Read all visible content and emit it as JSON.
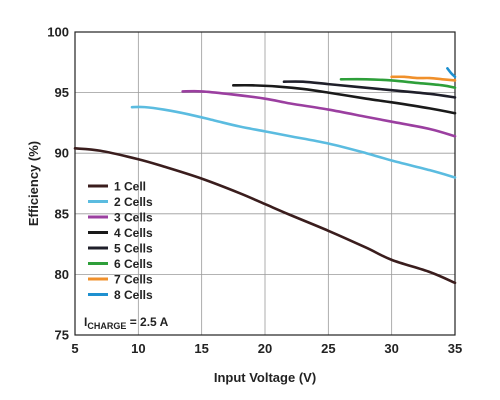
{
  "chart_data": {
    "type": "line",
    "title": "",
    "xlabel": "Input Voltage (V)",
    "ylabel": "Efficiency (%)",
    "xlim": [
      5,
      35
    ],
    "ylim": [
      75,
      100
    ],
    "xticks": [
      5,
      10,
      15,
      20,
      25,
      30,
      35
    ],
    "yticks": [
      75,
      80,
      85,
      90,
      95,
      100
    ],
    "grid": true,
    "legend_position": "left",
    "annotation": {
      "prefix": "I",
      "subscript": "CHARGE",
      "suffix": " = 2.5 A"
    },
    "series": [
      {
        "name": "1 Cell",
        "color": "#3a1d1d",
        "x": [
          5,
          7,
          10,
          12,
          15,
          18,
          20,
          22,
          25,
          28,
          30,
          33,
          35
        ],
        "y": [
          90.4,
          90.2,
          89.5,
          88.9,
          87.9,
          86.7,
          85.8,
          84.9,
          83.6,
          82.2,
          81.2,
          80.2,
          79.3
        ]
      },
      {
        "name": "2 Cells",
        "color": "#5bbce0",
        "x": [
          9.5,
          10.5,
          12,
          14,
          16,
          18,
          20,
          22,
          25,
          28,
          30,
          33,
          35
        ],
        "y": [
          93.8,
          93.8,
          93.6,
          93.2,
          92.7,
          92.2,
          91.8,
          91.4,
          90.8,
          90.0,
          89.4,
          88.6,
          88.0
        ]
      },
      {
        "name": "3 Cells",
        "color": "#9b3fa0",
        "x": [
          13.5,
          15,
          17,
          20,
          22,
          25,
          28,
          30,
          33,
          35
        ],
        "y": [
          95.1,
          95.1,
          94.9,
          94.5,
          94.1,
          93.6,
          93.0,
          92.6,
          92.0,
          91.4
        ]
      },
      {
        "name": "4 Cells",
        "color": "#1a1a1a",
        "x": [
          17.5,
          19,
          21,
          23,
          25,
          28,
          30,
          33,
          35
        ],
        "y": [
          95.6,
          95.6,
          95.5,
          95.3,
          95.0,
          94.5,
          94.2,
          93.7,
          93.3
        ]
      },
      {
        "name": "5 Cells",
        "color": "#1f1f2a",
        "x": [
          21.5,
          23,
          25,
          27,
          30,
          33,
          35
        ],
        "y": [
          95.9,
          95.9,
          95.7,
          95.5,
          95.2,
          94.9,
          94.6
        ]
      },
      {
        "name": "6 Cells",
        "color": "#2e9f3a",
        "x": [
          26,
          28,
          30,
          32,
          34,
          35
        ],
        "y": [
          96.1,
          96.1,
          96.0,
          95.8,
          95.6,
          95.4
        ]
      },
      {
        "name": "7 Cells",
        "color": "#f0902b",
        "x": [
          30,
          31,
          32,
          33,
          34,
          35
        ],
        "y": [
          96.3,
          96.3,
          96.2,
          96.2,
          96.1,
          96.0
        ]
      },
      {
        "name": "8 Cells",
        "color": "#1e90d0",
        "x": [
          34.4,
          34.7,
          35
        ],
        "y": [
          97.0,
          96.6,
          96.3
        ]
      }
    ]
  }
}
